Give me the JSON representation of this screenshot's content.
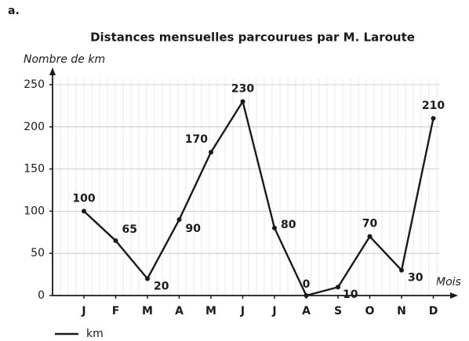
{
  "chart_data": {
    "type": "line",
    "label": "a.",
    "title": "Distances mensuelles parcourues par M. Laroute",
    "y_label": "Nombre de km",
    "x_label": "Mois",
    "categories": [
      "J",
      "F",
      "M",
      "A",
      "M",
      "J",
      "J",
      "A",
      "S",
      "O",
      "N",
      "D"
    ],
    "series": [
      {
        "name": "km",
        "color": "#1a1a1a",
        "values": [
          100,
          65,
          20,
          90,
          170,
          230,
          80,
          0,
          10,
          70,
          30,
          210
        ]
      }
    ],
    "ylim": [
      0,
      250
    ],
    "yticks": [
      0,
      50,
      100,
      150,
      200,
      250
    ],
    "grid": true
  }
}
